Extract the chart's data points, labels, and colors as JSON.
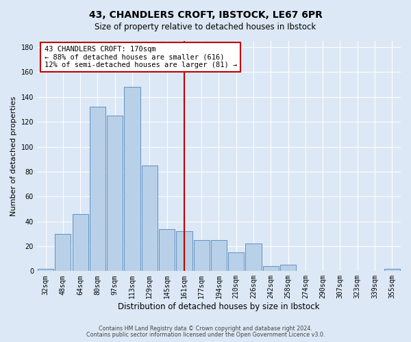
{
  "title_line1": "43, CHANDLERS CROFT, IBSTOCK, LE67 6PR",
  "title_line2": "Size of property relative to detached houses in Ibstock",
  "xlabel": "Distribution of detached houses by size in Ibstock",
  "ylabel": "Number of detached properties",
  "categories": [
    "32sqm",
    "48sqm",
    "64sqm",
    "80sqm",
    "97sqm",
    "113sqm",
    "129sqm",
    "145sqm",
    "161sqm",
    "177sqm",
    "194sqm",
    "210sqm",
    "226sqm",
    "242sqm",
    "258sqm",
    "274sqm",
    "290sqm",
    "307sqm",
    "323sqm",
    "339sqm",
    "355sqm"
  ],
  "values": [
    2,
    30,
    46,
    132,
    125,
    148,
    85,
    34,
    32,
    25,
    25,
    15,
    22,
    4,
    5,
    0,
    0,
    0,
    0,
    0,
    2
  ],
  "bar_color": "#b8d0e8",
  "bar_edge_color": "#6090c0",
  "vline_x_index": 8,
  "vline_color": "#c00000",
  "annotation_text": "43 CHANDLERS CROFT: 170sqm\n← 88% of detached houses are smaller (616)\n12% of semi-detached houses are larger (81) →",
  "annotation_box_color": "#c00000",
  "ylim": [
    0,
    185
  ],
  "yticks": [
    0,
    20,
    40,
    60,
    80,
    100,
    120,
    140,
    160,
    180
  ],
  "footnote1": "Contains HM Land Registry data © Crown copyright and database right 2024.",
  "footnote2": "Contains public sector information licensed under the Open Government Licence v3.0.",
  "background_color": "#dce8f5",
  "plot_background_color": "#dce8f5",
  "title1_fontsize": 10,
  "title2_fontsize": 8.5,
  "tick_fontsize": 7,
  "ylabel_fontsize": 8,
  "xlabel_fontsize": 8.5,
  "annotation_fontsize": 7.5,
  "footnote_fontsize": 5.8
}
